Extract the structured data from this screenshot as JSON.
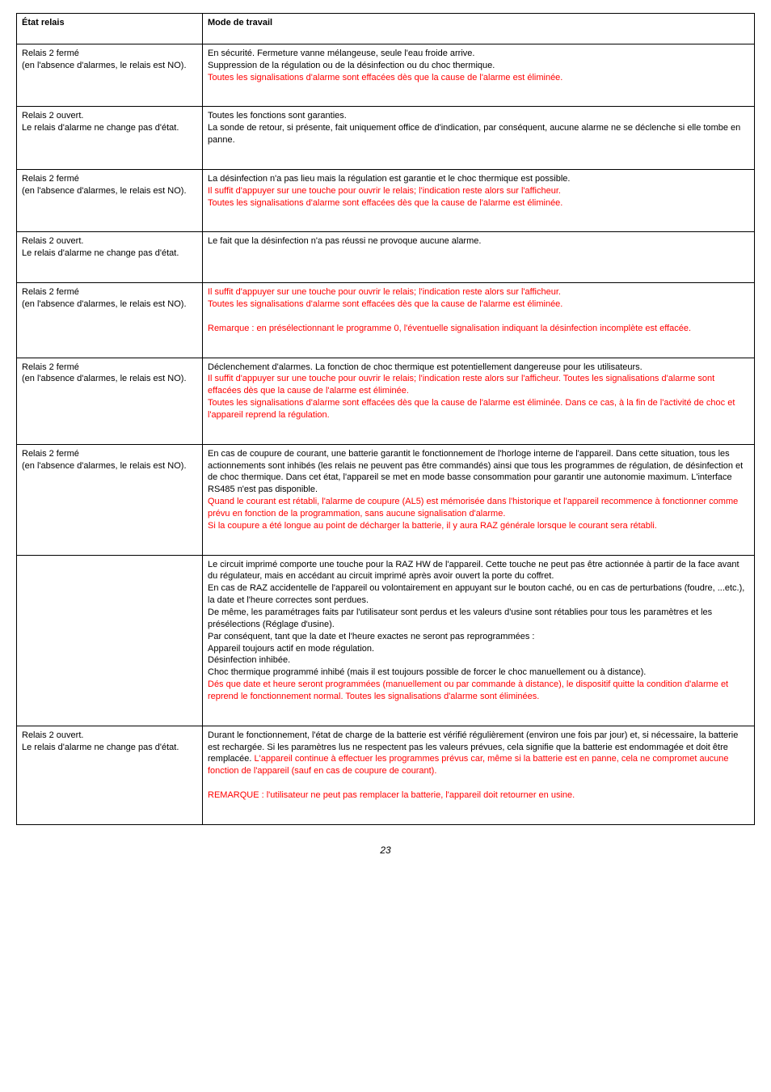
{
  "header": {
    "col1": "État relais",
    "col2": "Mode de travail"
  },
  "rows": [
    {
      "col1_lines": [
        {
          "text": "Relais 2 fermé",
          "red": false
        },
        {
          "text": "(en l'absence d'alarmes, le relais est NO).",
          "red": false
        }
      ],
      "col2_lines": [
        {
          "text": "En sécurité. Fermeture vanne mélangeuse, seule l'eau froide arrive.",
          "red": false
        },
        {
          "text": "Suppression de la régulation ou de la désinfection ou du choc thermique.",
          "red": false
        },
        {
          "text": "Toutes les signalisations d'alarme sont effacées dès que la cause de l'alarme est éliminée.",
          "red": true
        }
      ]
    },
    {
      "col1_lines": [
        {
          "text": "Relais 2 ouvert.",
          "red": false
        },
        {
          "text": "Le relais d'alarme ne change pas d'état.",
          "red": false
        }
      ],
      "col2_lines": [
        {
          "text": "Toutes les fonctions sont garanties.",
          "red": false
        },
        {
          "text": "La sonde de retour, si présente, fait uniquement office de d'indication, par conséquent, aucune alarme ne se déclenche si elle tombe en panne.",
          "red": false
        }
      ]
    },
    {
      "col1_lines": [
        {
          "text": "Relais 2 fermé",
          "red": false
        },
        {
          "text": "(en l'absence d'alarmes, le relais est NO).",
          "red": false
        }
      ],
      "col2_lines": [
        {
          "text": "La désinfection n'a pas lieu mais la régulation est garantie et le choc thermique est possible.",
          "red": false
        },
        {
          "text": "Il suffit d'appuyer sur une touche pour ouvrir le relais; l'indication reste alors sur l'afficheur.",
          "red": true
        },
        {
          "text": "Toutes les signalisations d'alarme sont effacées dès que la cause de l'alarme est éliminée.",
          "red": true
        }
      ]
    },
    {
      "col1_lines": [
        {
          "text": "Relais 2 ouvert.",
          "red": false
        },
        {
          "text": "Le relais d'alarme ne change pas d'état.",
          "red": false
        }
      ],
      "col2_lines": [
        {
          "text": "Le fait que la désinfection n'a pas réussi ne provoque aucune alarme.",
          "red": false
        }
      ]
    },
    {
      "col1_lines": [
        {
          "text": "Relais 2 fermé",
          "red": false
        },
        {
          "text": "(en l'absence d'alarmes, le relais est NO).",
          "red": false
        }
      ],
      "col2_lines": [
        {
          "text": "Il suffit d'appuyer sur une touche pour ouvrir le relais; l'indication reste alors sur l'afficheur.",
          "red": true
        },
        {
          "text": "Toutes les signalisations d'alarme sont effacées dès que la cause de l'alarme est éliminée.",
          "red": true
        },
        {
          "text": " ",
          "red": false
        },
        {
          "text": "Remarque : en présélectionnant le programme 0, l'éventuelle signalisation indiquant la désinfection incomplète est effacée.",
          "red": true
        }
      ]
    },
    {
      "col1_lines": [
        {
          "text": "Relais 2 fermé",
          "red": false
        },
        {
          "text": "(en l'absence d'alarmes, le relais est NO).",
          "red": false
        }
      ],
      "col2_lines": [
        {
          "text": "Déclenchement d'alarmes. La fonction de choc thermique est potentiellement dangereuse pour les utilisateurs.",
          "red": false
        },
        {
          "text": "Il suffit d'appuyer sur une touche pour ouvrir le relais; l'indication reste alors sur l'afficheur. Toutes les signalisations d'alarme sont effacées dès que la cause de l'alarme est éliminée.",
          "red": true
        },
        {
          "text": "Toutes les signalisations d'alarme sont effacées dès que la cause de l'alarme est éliminée. Dans ce cas, à la fin de l'activité de choc et l'appareil reprend la régulation.",
          "red": true
        }
      ]
    },
    {
      "col1_lines": [
        {
          "text": "Relais 2 fermé",
          "red": false
        },
        {
          "text": "(en l'absence d'alarmes, le relais est NO).",
          "red": false
        }
      ],
      "col2_lines": [
        {
          "text": "En cas de coupure de courant, une batterie garantit le fonctionnement de l'horloge interne de l'appareil. Dans cette situation, tous les actionnements sont inhibés (les relais ne peuvent pas être commandés) ainsi que tous les programmes de régulation, de désinfection et de choc thermique. Dans cet état, l'appareil se met en mode basse consommation pour garantir une autonomie maximum. L'interface RS485 n'est pas disponible.",
          "red": false
        },
        {
          "text": "Quand le courant est rétabli, l'alarme de coupure (AL5) est mémorisée dans l'historique et l'appareil recommence à fonctionner comme prévu en fonction de la programmation, sans aucune signalisation d'alarme.",
          "red": true
        },
        {
          "text": "Si la coupure a été longue au point de décharger la batterie, il y aura RAZ générale lorsque le courant sera rétabli.",
          "red": true
        }
      ]
    },
    {
      "col1_lines": [],
      "col2_lines": [
        {
          "text": "Le circuit imprimé comporte une touche pour la RAZ HW de l'appareil. Cette touche ne peut pas être actionnée à partir de la face avant du régulateur, mais en accédant au circuit imprimé après avoir ouvert la porte du coffret.",
          "red": false
        },
        {
          "text": "En cas de RAZ accidentelle de l'appareil ou volontairement en appuyant sur le bouton caché, ou en cas de perturbations (foudre, ...etc.), la date et l'heure correctes sont perdues.",
          "red": false
        },
        {
          "text": "De même, les paramétrages faits par l'utilisateur sont perdus et les valeurs d'usine sont rétablies pour tous les paramètres et les présélections (Réglage d'usine).",
          "red": false
        },
        {
          "text": "Par conséquent, tant que la date et l'heure exactes ne seront pas reprogrammées :",
          "red": false
        },
        {
          "text": "Appareil toujours actif en mode régulation.",
          "red": false
        },
        {
          "text": "Désinfection inhibée.",
          "red": false
        },
        {
          "text": "Choc thermique programmé inhibé (mais il est toujours possible de forcer le choc manuellement ou à distance).",
          "red": false
        },
        {
          "text": "Dés que date et heure seront programmées (manuellement ou par commande à distance), le dispositif quitte la condition d'alarme et reprend le fonctionnement normal. Toutes les signalisations d'alarme sont éliminées.",
          "red": true
        }
      ]
    },
    {
      "col1_lines": [
        {
          "text": "Relais 2 ouvert.",
          "red": false
        },
        {
          "text": "Le relais d'alarme ne change pas d'état.",
          "red": false
        }
      ],
      "col2_lines": [
        {
          "text": "Durant le fonctionnement, l'état de charge de la batterie est vérifié régulièrement (environ une fois par jour) et, si nécessaire, la batterie est rechargée. Si les paramètres lus ne respectent pas les valeurs prévues, cela signifie que la batterie est endommagée et doit être remplacée. ",
          "red": false,
          "inline": true
        },
        {
          "text": "L'appareil continue à effectuer les programmes prévus car, même si la batterie est en panne, cela ne compromet aucune fonction de l'appareil (sauf en cas de coupure de courant).",
          "red": true
        },
        {
          "text": " ",
          "red": false
        },
        {
          "text": "REMARQUE : l'utilisateur ne peut pas remplacer la batterie, l'appareil doit retourner en usine.",
          "red": true
        }
      ]
    }
  ],
  "pagenum": "23"
}
